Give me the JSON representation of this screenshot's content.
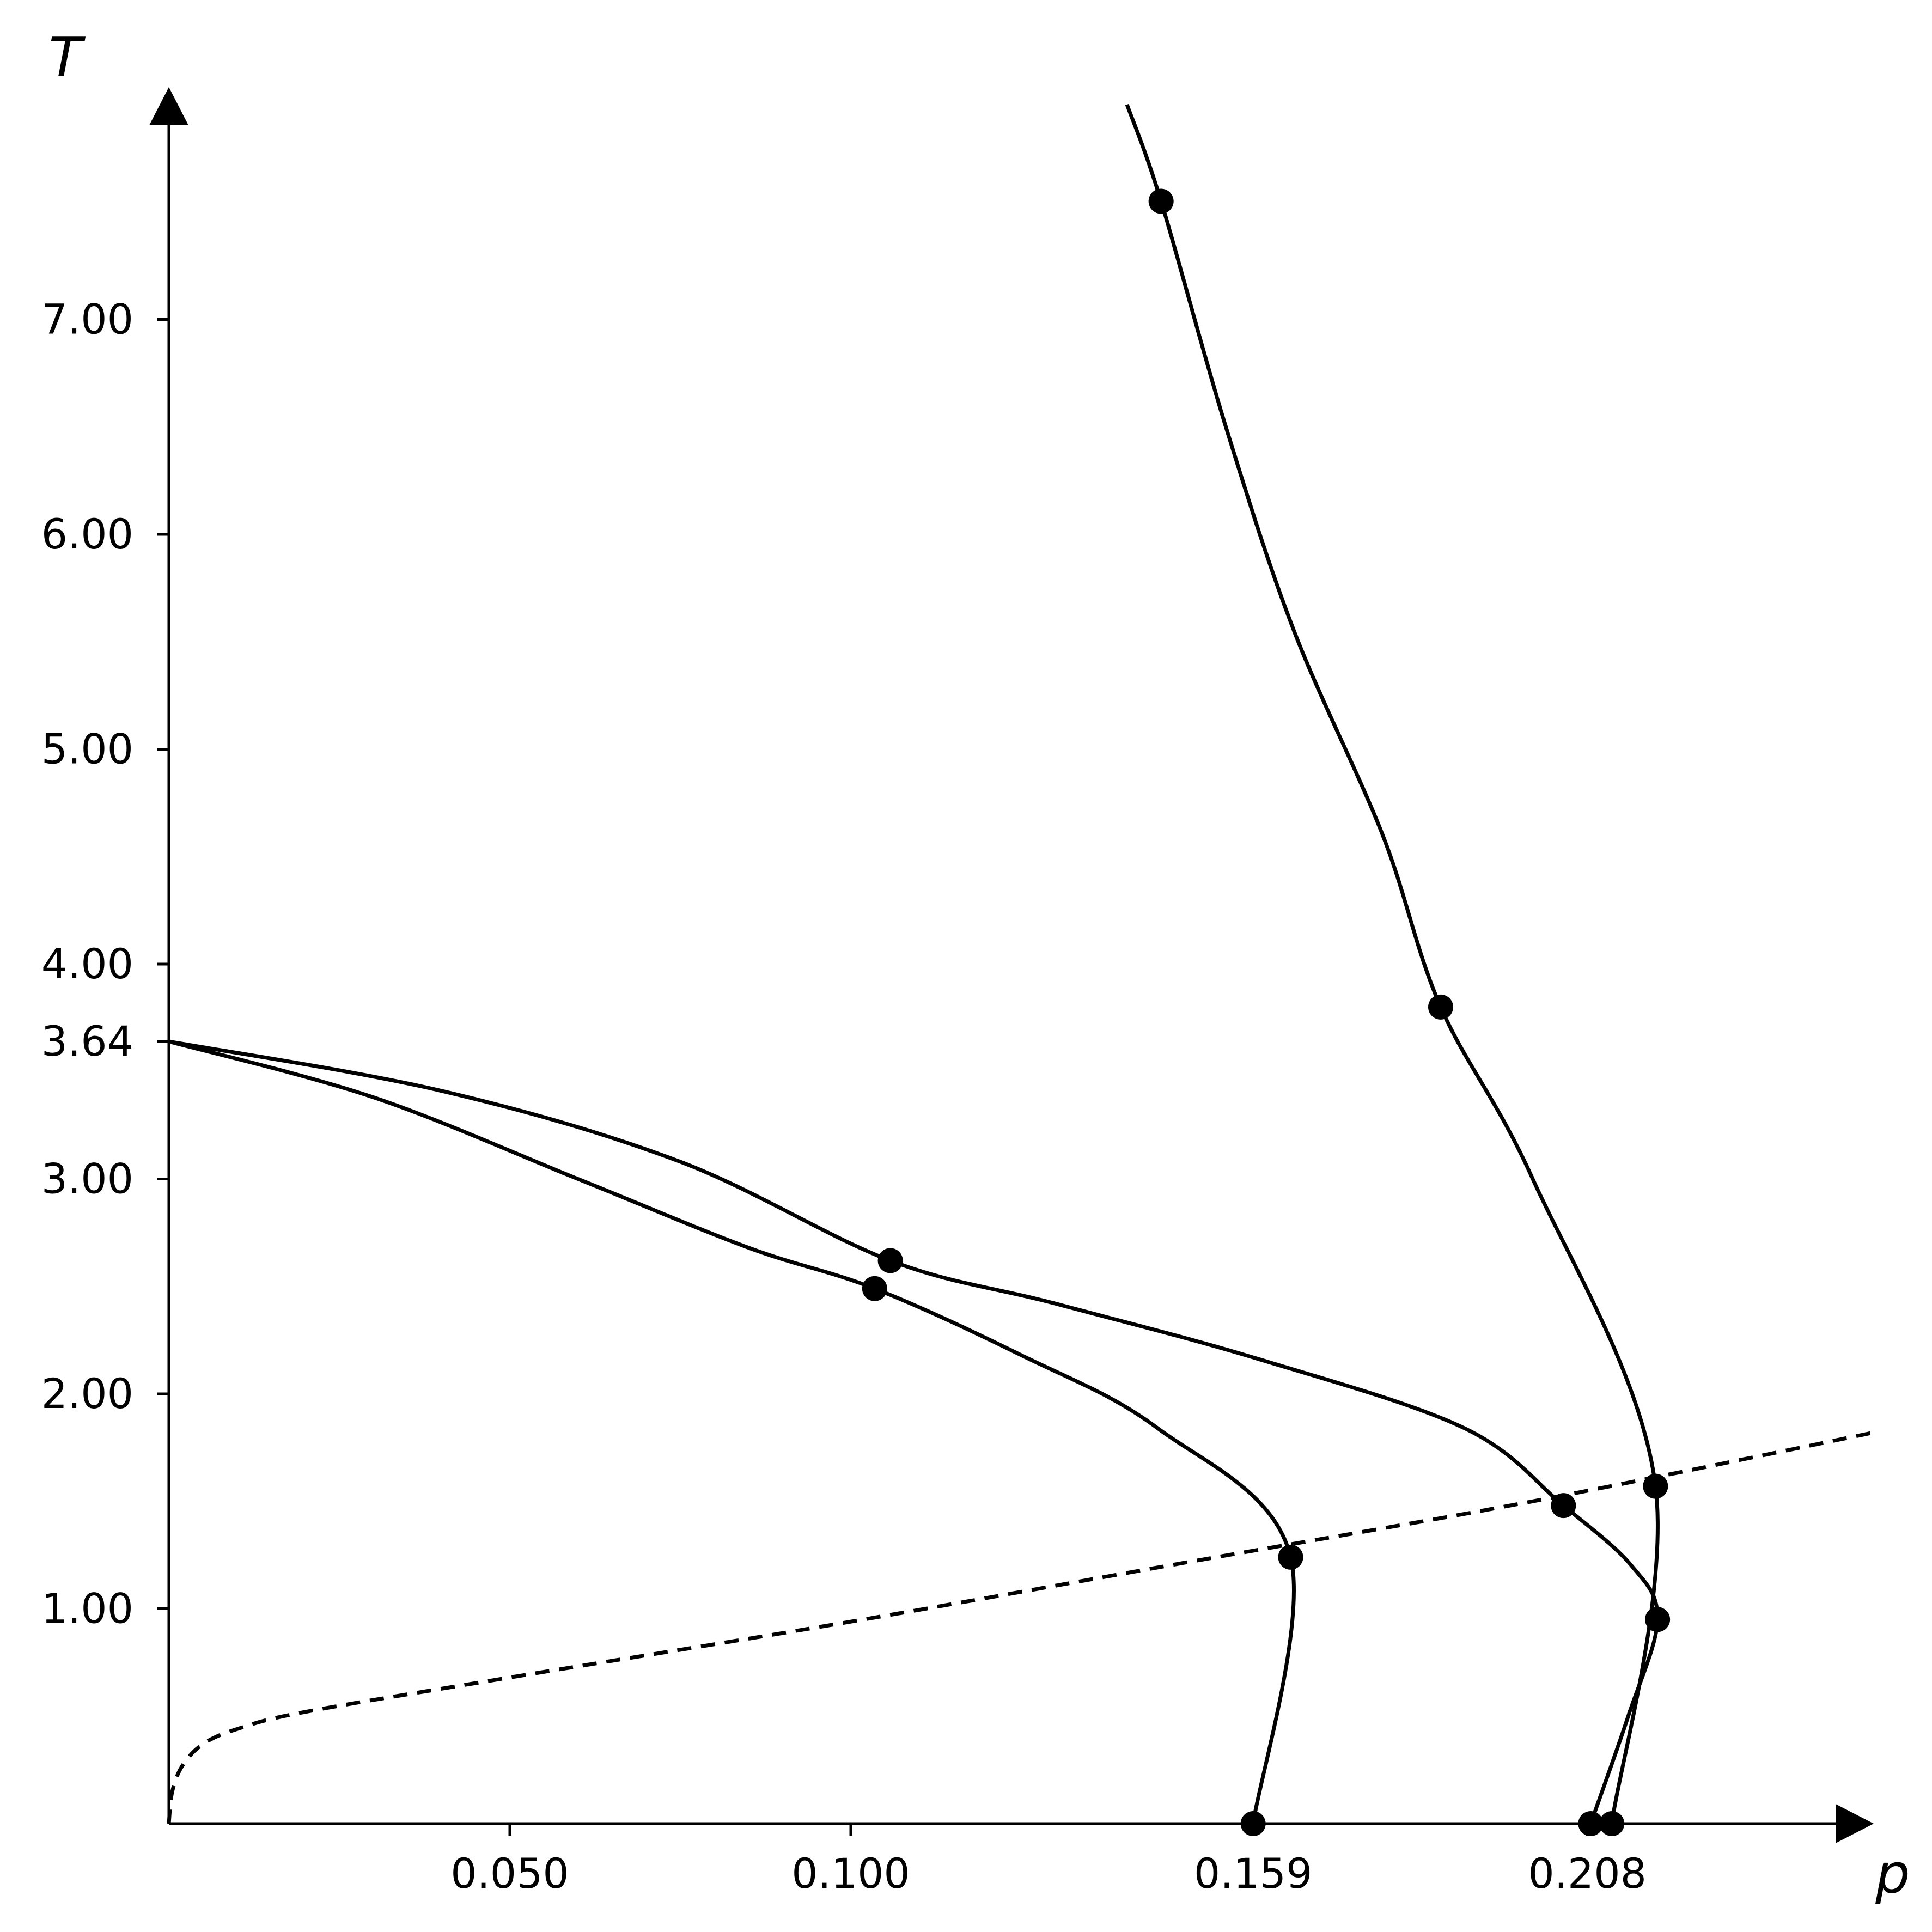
{
  "chart_data": {
    "type": "line",
    "xlabel": "p",
    "ylabel": "T",
    "xlim": [
      0.0,
      0.25
    ],
    "ylim": [
      0.0,
      8.2
    ],
    "xticks": [
      {
        "value": 0.05,
        "label": "0.050"
      },
      {
        "value": 0.1,
        "label": "0.100"
      },
      {
        "value": 0.159,
        "label": "0.159"
      },
      {
        "value": 0.208,
        "label": "0.208"
      }
    ],
    "yticks": [
      {
        "value": 1.0,
        "label": "1.00"
      },
      {
        "value": 2.0,
        "label": "2.00"
      },
      {
        "value": 3.0,
        "label": "3.00"
      },
      {
        "value": 3.64,
        "label": "3.64"
      },
      {
        "value": 4.0,
        "label": "4.00"
      },
      {
        "value": 5.0,
        "label": "5.00"
      },
      {
        "value": 6.0,
        "label": "6.00"
      },
      {
        "value": 7.0,
        "label": "7.00"
      }
    ],
    "grid": false,
    "legend": "none",
    "series": [
      {
        "style": "solid",
        "x": [
          0.0,
          0.03,
          0.06,
          0.085,
          0.1035,
          0.125,
          0.145,
          0.1645,
          0.159
        ],
        "y": [
          3.64,
          3.38,
          3.0,
          2.68,
          2.49,
          2.18,
          1.84,
          1.24,
          0.0
        ]
      },
      {
        "style": "solid",
        "x": [
          0.0,
          0.04,
          0.075,
          0.1058,
          0.13,
          0.16,
          0.19,
          0.2045,
          0.2145,
          0.2183,
          0.214,
          0.2085
        ],
        "y": [
          3.64,
          3.41,
          3.08,
          2.62,
          2.42,
          2.16,
          1.84,
          1.48,
          1.2,
          0.95,
          0.5,
          0.0
        ]
      },
      {
        "style": "solid",
        "x": [
          0.1405,
          0.1455,
          0.155,
          0.165,
          0.178,
          0.1865,
          0.2,
          0.218,
          0.2116
        ],
        "y": [
          8.0,
          7.55,
          6.5,
          5.55,
          4.6,
          3.8,
          3.0,
          1.57,
          0.0
        ]
      },
      {
        "style": "dashed",
        "x": [
          0.0,
          0.0005,
          0.002,
          0.005,
          0.01,
          0.02,
          0.05,
          0.1,
          0.15,
          0.2,
          0.25
        ],
        "y": [
          0.0,
          0.15,
          0.27,
          0.37,
          0.44,
          0.52,
          0.68,
          0.94,
          1.22,
          1.5,
          1.82
        ]
      }
    ],
    "points": [
      {
        "x": 0.1455,
        "y": 7.55
      },
      {
        "x": 0.1865,
        "y": 3.8
      },
      {
        "x": 0.1058,
        "y": 2.62
      },
      {
        "x": 0.1035,
        "y": 2.49
      },
      {
        "x": 0.1645,
        "y": 1.24
      },
      {
        "x": 0.2045,
        "y": 1.48
      },
      {
        "x": 0.218,
        "y": 1.57
      },
      {
        "x": 0.2183,
        "y": 0.95
      },
      {
        "x": 0.159,
        "y": 0.0
      },
      {
        "x": 0.2085,
        "y": 0.0
      },
      {
        "x": 0.2116,
        "y": 0.0
      }
    ]
  }
}
